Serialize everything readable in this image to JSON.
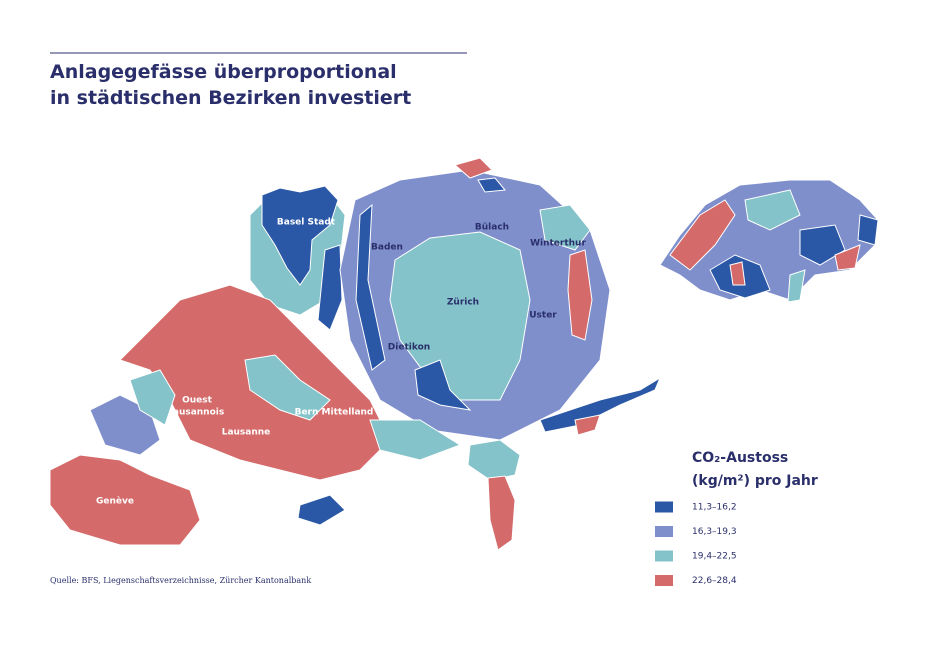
{
  "header": {
    "title": [
      "Anlagegefässe überproportional",
      "in städtischen Bezirken investiert"
    ]
  },
  "map": {
    "labels": [
      [
        "Basel Stadt"
      ],
      [
        "Baden"
      ],
      [
        "Bülach"
      ],
      [
        "Winterthur"
      ],
      [
        "Zürich"
      ],
      [
        "Uster"
      ],
      [
        "Dietikon"
      ],
      [
        "Ouest",
        "lausannois"
      ],
      [
        "Lausanne"
      ],
      [
        "Bern Mittelland"
      ],
      [
        "Genève"
      ]
    ]
  },
  "legend": {
    "title": [
      "CO₂-Austoss",
      "(kg/m²) pro Jahr"
    ],
    "items": [
      {
        "label": "11,3–16,2",
        "color": "#2b58a6"
      },
      {
        "label": "16,3–19,3",
        "color": "#7f8fcc"
      },
      {
        "label": "19,4–22,5",
        "color": "#83c3c9"
      },
      {
        "label": "22,6–28,4",
        "color": "#d46a6a"
      }
    ]
  },
  "source": "Quelle: BFS, Liegenschaftsverzeichnisse, Zürcher Kantonalbank"
}
